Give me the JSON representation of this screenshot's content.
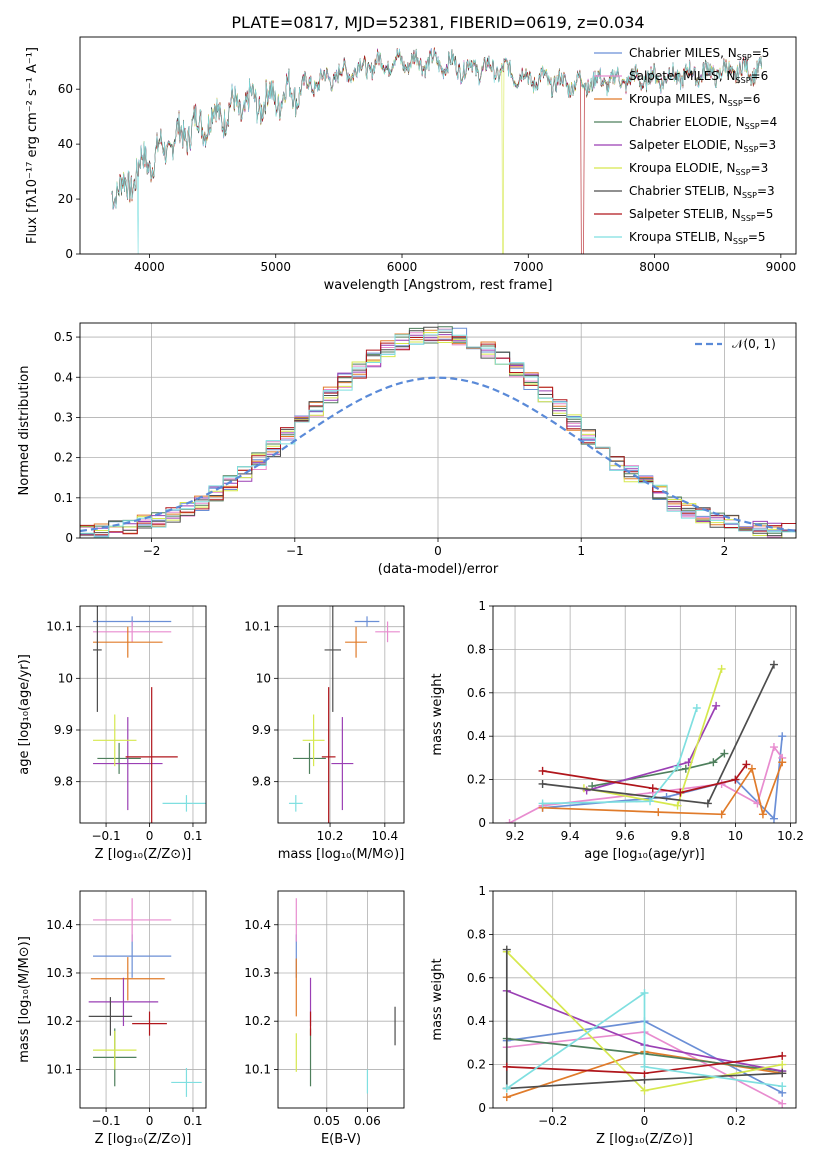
{
  "title": "PLATE=0817, MJD=52381, FIBERID=0619, z=0.034",
  "colors": {
    "Chabrier MILES": "#6b8fd6",
    "Salpeter MILES": "#e88ccf",
    "Kroupa MILES": "#e07b2a",
    "Chabrier ELODIE": "#4e7f5c",
    "Salpeter ELODIE": "#9a3fb4",
    "Kroupa ELODIE": "#d6e84e",
    "Chabrier STELIB": "#4d4d4d",
    "Salpeter STELIB": "#b0161c",
    "Kroupa STELIB": "#7fdfe0"
  },
  "legend_spectrum": [
    {
      "model": "Chabrier MILES",
      "nssp": "5"
    },
    {
      "model": "Salpeter MILES",
      "nssp": "6"
    },
    {
      "model": "Kroupa MILES",
      "nssp": "6"
    },
    {
      "model": "Chabrier ELODIE",
      "nssp": "4"
    },
    {
      "model": "Salpeter ELODIE",
      "nssp": "3"
    },
    {
      "model": "Kroupa ELODIE",
      "nssp": "3"
    },
    {
      "model": "Chabrier STELIB",
      "nssp": "3"
    },
    {
      "model": "Salpeter STELIB",
      "nssp": "5"
    },
    {
      "model": "Kroupa STELIB",
      "nssp": "5"
    }
  ],
  "chart_data": [
    {
      "id": "spectrum",
      "type": "line",
      "xlabel": "wavelength [Angstrom, rest frame]",
      "ylabel": "Flux [fλ10⁻¹⁷ erg cm⁻² s⁻¹ A⁻¹]",
      "xlim": [
        3450,
        9120
      ],
      "ylim": [
        0,
        79
      ],
      "xticks": [
        4000,
        5000,
        6000,
        7000,
        8000,
        9000
      ],
      "yticks": [
        0,
        20,
        40,
        60
      ],
      "continuum_x": [
        3700,
        3800,
        3950,
        4050,
        4300,
        4600,
        5000,
        5300,
        5600,
        5900,
        6200,
        6500,
        6800,
        7000,
        7300,
        7600,
        8000,
        8400,
        8800
      ],
      "continuum_y": [
        25,
        23,
        33,
        36,
        45,
        52,
        57,
        62,
        67,
        70,
        70,
        68,
        67,
        64,
        62,
        63,
        64,
        66,
        67
      ],
      "spectrum_range": [
        3700,
        8850
      ],
      "gaps": [
        {
          "model": "Salpeter STELIB",
          "x": 7420
        },
        {
          "model": "Kroupa ELODIE",
          "x": 6800
        },
        {
          "model": "Kroupa STELIB",
          "x": 3910
        }
      ]
    },
    {
      "id": "residuals",
      "type": "step",
      "xlabel": "(data-model)/error",
      "ylabel": "Normed distribution",
      "xlim": [
        -2.5,
        2.5
      ],
      "ylim": [
        0,
        0.535
      ],
      "xticks": [
        -2,
        -1,
        0,
        1,
        2
      ],
      "yticks": [
        0.0,
        0.1,
        0.2,
        0.3,
        0.4,
        0.5
      ],
      "bins": [
        -2.5,
        2.5,
        50
      ],
      "legend": "𝒩(0, 1)",
      "gaussian_mean": 0,
      "gaussian_sigma": 1
    },
    {
      "id": "age-vs-Z",
      "type": "errorbar",
      "xlabel": "Z [log₁₀(Z/Z⊙)]",
      "ylabel": "age  [log₁₀(age/yr)]",
      "xlim": [
        -0.16,
        0.13
      ],
      "ylim": [
        9.72,
        10.14
      ],
      "xticks": [
        -0.1,
        0.0,
        0.1
      ],
      "yticks": [
        9.8,
        9.9,
        10.0,
        10.1
      ],
      "series": [
        {
          "name": "Chabrier MILES",
          "x": -0.04,
          "xerr": 0.09,
          "y": 10.11,
          "yerr": 0.01
        },
        {
          "name": "Salpeter MILES",
          "x": -0.04,
          "xerr": 0.09,
          "y": 10.09,
          "yerr": 0.02
        },
        {
          "name": "Kroupa MILES",
          "x": -0.05,
          "xerr": 0.08,
          "y": 10.07,
          "yerr": 0.03
        },
        {
          "name": "Chabrier ELODIE",
          "x": -0.07,
          "xerr": 0.05,
          "y": 9.845,
          "yerr": 0.03
        },
        {
          "name": "Salpeter ELODIE",
          "x": -0.05,
          "xerr": 0.08,
          "y": 9.835,
          "yerr": 0.09
        },
        {
          "name": "Kroupa ELODIE",
          "x": -0.08,
          "xerr": 0.05,
          "y": 9.88,
          "yerr": 0.05
        },
        {
          "name": "Chabrier STELIB",
          "x": -0.12,
          "xerr": 0.01,
          "y": 10.055,
          "yerr": 0.12
        },
        {
          "name": "Salpeter STELIB",
          "x": 0.005,
          "xerr": 0.06,
          "y": 9.848,
          "yerr": 0.135
        },
        {
          "name": "Kroupa STELIB",
          "x": 0.085,
          "xerr": 0.055,
          "y": 9.758,
          "yerr": 0.016
        }
      ]
    },
    {
      "id": "age-vs-mass",
      "type": "errorbar",
      "xlabel": "mass [log₁₀(M/M⊙)]",
      "ylabel": "",
      "xlim": [
        10.01,
        10.47
      ],
      "ylim": [
        9.72,
        10.14
      ],
      "xticks": [
        10.2,
        10.4
      ],
      "yticks": [
        9.8,
        9.9,
        10.0,
        10.1
      ],
      "series": [
        {
          "name": "Chabrier MILES",
          "x": 10.335,
          "xerr": 0.045,
          "y": 10.11,
          "yerr": 0.01
        },
        {
          "name": "Salpeter MILES",
          "x": 10.41,
          "xerr": 0.045,
          "y": 10.09,
          "yerr": 0.02
        },
        {
          "name": "Kroupa MILES",
          "x": 10.295,
          "xerr": 0.04,
          "y": 10.07,
          "yerr": 0.03
        },
        {
          "name": "Chabrier ELODIE",
          "x": 10.125,
          "xerr": 0.06,
          "y": 9.845,
          "yerr": 0.03
        },
        {
          "name": "Salpeter ELODIE",
          "x": 10.245,
          "xerr": 0.04,
          "y": 9.835,
          "yerr": 0.09
        },
        {
          "name": "Kroupa ELODIE",
          "x": 10.14,
          "xerr": 0.04,
          "y": 9.88,
          "yerr": 0.05
        },
        {
          "name": "Chabrier STELIB",
          "x": 10.21,
          "xerr": 0.03,
          "y": 10.055,
          "yerr": 0.12
        },
        {
          "name": "Salpeter STELIB",
          "x": 10.195,
          "xerr": 0.025,
          "y": 9.848,
          "yerr": 0.135
        },
        {
          "name": "Kroupa STELIB",
          "x": 10.075,
          "xerr": 0.025,
          "y": 9.758,
          "yerr": 0.016
        }
      ]
    },
    {
      "id": "weight-vs-age",
      "type": "line",
      "xlabel": "age  [log₁₀(age/yr)]",
      "ylabel": "mass weight",
      "xlim": [
        9.12,
        10.22
      ],
      "ylim": [
        0,
        1.0
      ],
      "xticks": [
        9.2,
        9.4,
        9.6,
        9.8,
        10.0,
        10.2
      ],
      "yticks": [
        0.0,
        0.2,
        0.4,
        0.6,
        0.8,
        1.0
      ],
      "series": [
        {
          "name": "Chabrier MILES",
          "points": [
            [
              9.3,
              0.07
            ],
            [
              9.75,
              0.12
            ],
            [
              10.0,
              0.2
            ],
            [
              10.14,
              0.02
            ],
            [
              10.17,
              0.4
            ]
          ]
        },
        {
          "name": "Salpeter MILES",
          "points": [
            [
              9.18,
              0.0
            ],
            [
              9.3,
              0.08
            ],
            [
              9.7,
              0.14
            ],
            [
              9.95,
              0.18
            ],
            [
              10.08,
              0.09
            ],
            [
              10.14,
              0.35
            ],
            [
              10.17,
              0.3
            ]
          ]
        },
        {
          "name": "Kroupa MILES",
          "points": [
            [
              9.3,
              0.07
            ],
            [
              9.72,
              0.05
            ],
            [
              9.95,
              0.04
            ],
            [
              10.06,
              0.25
            ],
            [
              10.1,
              0.04
            ],
            [
              10.17,
              0.28
            ]
          ]
        },
        {
          "name": "Chabrier ELODIE",
          "points": [
            [
              9.48,
              0.17
            ],
            [
              9.82,
              0.25
            ],
            [
              9.92,
              0.28
            ],
            [
              9.96,
              0.32
            ]
          ]
        },
        {
          "name": "Salpeter ELODIE",
          "points": [
            [
              9.46,
              0.15
            ],
            [
              9.83,
              0.28
            ],
            [
              9.93,
              0.54
            ]
          ]
        },
        {
          "name": "Kroupa ELODIE",
          "points": [
            [
              9.45,
              0.16
            ],
            [
              9.79,
              0.08
            ],
            [
              9.95,
              0.71
            ]
          ]
        },
        {
          "name": "Chabrier STELIB",
          "points": [
            [
              9.3,
              0.18
            ],
            [
              9.9,
              0.09
            ],
            [
              10.14,
              0.73
            ]
          ]
        },
        {
          "name": "Salpeter STELIB",
          "points": [
            [
              9.3,
              0.24
            ],
            [
              9.7,
              0.16
            ],
            [
              9.8,
              0.14
            ],
            [
              10.0,
              0.2
            ],
            [
              10.04,
              0.27
            ]
          ]
        },
        {
          "name": "Kroupa STELIB",
          "points": [
            [
              9.3,
              0.09
            ],
            [
              9.69,
              0.1
            ],
            [
              9.79,
              0.26
            ],
            [
              9.86,
              0.53
            ]
          ]
        }
      ]
    },
    {
      "id": "mass-vs-Z",
      "type": "errorbar",
      "xlabel": "Z [log₁₀(Z/Z⊙)]",
      "ylabel": "mass [log₁₀(M/M⊙)]",
      "xlim": [
        -0.16,
        0.13
      ],
      "ylim": [
        10.02,
        10.47
      ],
      "xticks": [
        -0.1,
        0.0,
        0.1
      ],
      "yticks": [
        10.1,
        10.2,
        10.3,
        10.4
      ],
      "series": [
        {
          "name": "Chabrier MILES",
          "x": -0.04,
          "xerr": 0.09,
          "y": 10.335,
          "yerr": 0.045
        },
        {
          "name": "Salpeter MILES",
          "x": -0.04,
          "xerr": 0.09,
          "y": 10.41,
          "yerr": 0.045
        },
        {
          "name": "Kroupa MILES",
          "x": -0.05,
          "xerr": 0.085,
          "y": 10.288,
          "yerr": 0.045
        },
        {
          "name": "Chabrier ELODIE",
          "x": -0.08,
          "xerr": 0.05,
          "y": 10.125,
          "yerr": 0.06
        },
        {
          "name": "Salpeter ELODIE",
          "x": -0.06,
          "xerr": 0.08,
          "y": 10.24,
          "yerr": 0.05
        },
        {
          "name": "Kroupa ELODIE",
          "x": -0.08,
          "xerr": 0.05,
          "y": 10.14,
          "yerr": 0.04
        },
        {
          "name": "Chabrier STELIB",
          "x": -0.09,
          "xerr": 0.05,
          "y": 10.21,
          "yerr": 0.04
        },
        {
          "name": "Salpeter STELIB",
          "x": 0.0,
          "xerr": 0.04,
          "y": 10.195,
          "yerr": 0.025
        },
        {
          "name": "Kroupa STELIB",
          "x": 0.085,
          "xerr": 0.035,
          "y": 10.073,
          "yerr": 0.03
        }
      ]
    },
    {
      "id": "mass-vs-ebv",
      "type": "errorbar",
      "xlabel": "E(B-V)",
      "ylabel": "",
      "xlim": [
        0.038,
        0.069
      ],
      "ylim": [
        10.02,
        10.47
      ],
      "xticks": [
        0.05,
        0.06
      ],
      "yticks": [
        10.1,
        10.2,
        10.3,
        10.4
      ],
      "series": [
        {
          "name": "Chabrier MILES",
          "x": 0.0425,
          "xerr": 0,
          "y": 10.335,
          "yerr": 0.045
        },
        {
          "name": "Salpeter MILES",
          "x": 0.0425,
          "xerr": 0,
          "y": 10.41,
          "yerr": 0.045
        },
        {
          "name": "Kroupa MILES",
          "x": 0.0425,
          "xerr": 0,
          "y": 10.27,
          "yerr": 0.06
        },
        {
          "name": "Chabrier ELODIE",
          "x": 0.046,
          "xerr": 0,
          "y": 10.125,
          "yerr": 0.06
        },
        {
          "name": "Salpeter ELODIE",
          "x": 0.046,
          "xerr": 0,
          "y": 10.24,
          "yerr": 0.05
        },
        {
          "name": "Kroupa ELODIE",
          "x": 0.0425,
          "xerr": 0,
          "y": 10.135,
          "yerr": 0.04
        },
        {
          "name": "Chabrier STELIB",
          "x": 0.0668,
          "xerr": 0,
          "y": 10.19,
          "yerr": 0.04
        },
        {
          "name": "Salpeter STELIB",
          "x": 0.046,
          "xerr": 0,
          "y": 10.195,
          "yerr": 0.025
        },
        {
          "name": "Kroupa STELIB",
          "x": 0.06,
          "xerr": 0,
          "y": 10.075,
          "yerr": 0.025
        }
      ]
    },
    {
      "id": "weight-vs-Z",
      "type": "line",
      "xlabel": "Z [log₁₀(Z/Z⊙)]",
      "ylabel": "mass weight",
      "xlim": [
        -0.33,
        0.33
      ],
      "ylim": [
        0,
        1.0
      ],
      "xticks": [
        -0.2,
        0.0,
        0.2
      ],
      "yticks": [
        0.0,
        0.2,
        0.4,
        0.6,
        0.8,
        1.0
      ],
      "series": [
        {
          "name": "Chabrier MILES",
          "points": [
            [
              -0.3,
              0.31
            ],
            [
              0.0,
              0.4
            ],
            [
              0.3,
              0.07
            ]
          ]
        },
        {
          "name": "Salpeter MILES",
          "points": [
            [
              -0.3,
              0.28
            ],
            [
              0.0,
              0.35
            ],
            [
              0.3,
              0.02
            ]
          ]
        },
        {
          "name": "Kroupa MILES",
          "points": [
            [
              -0.3,
              0.05
            ],
            [
              0.0,
              0.26
            ],
            [
              0.3,
              0.16
            ]
          ]
        },
        {
          "name": "Chabrier ELODIE",
          "points": [
            [
              -0.3,
              0.32
            ],
            [
              0.0,
              0.25
            ],
            [
              0.3,
              0.17
            ]
          ]
        },
        {
          "name": "Salpeter ELODIE",
          "points": [
            [
              -0.3,
              0.54
            ],
            [
              0.0,
              0.29
            ],
            [
              0.3,
              0.17
            ]
          ]
        },
        {
          "name": "Kroupa ELODIE",
          "points": [
            [
              -0.3,
              0.72
            ],
            [
              0.0,
              0.08
            ],
            [
              0.3,
              0.2
            ]
          ]
        },
        {
          "name": "Chabrier STELIB",
          "points": [
            [
              -0.3,
              0.73
            ],
            [
              -0.3,
              0.09
            ],
            [
              0.0,
              0.13
            ],
            [
              0.3,
              0.16
            ]
          ]
        },
        {
          "name": "Salpeter STELIB",
          "points": [
            [
              -0.3,
              0.19
            ],
            [
              0.0,
              0.16
            ],
            [
              0.3,
              0.24
            ]
          ]
        },
        {
          "name": "Kroupa STELIB",
          "points": [
            [
              -0.3,
              0.09
            ],
            [
              0.0,
              0.53
            ],
            [
              0.0,
              0.19
            ],
            [
              0.3,
              0.1
            ]
          ]
        }
      ]
    }
  ]
}
